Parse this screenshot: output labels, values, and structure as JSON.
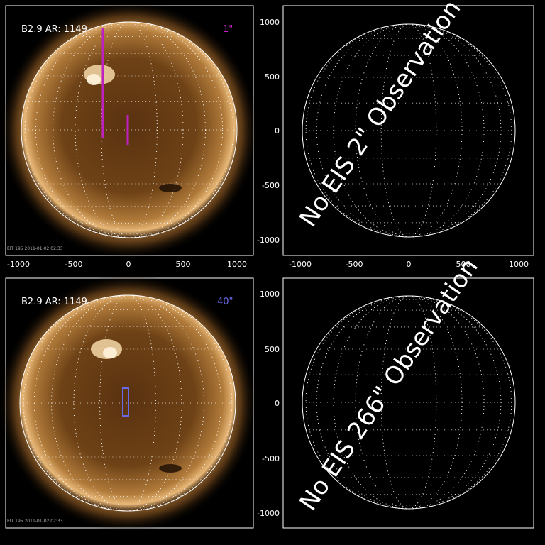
{
  "panels": {
    "top_left": {
      "header_left": "B2.9  AR: 1149",
      "header_right": "1\"",
      "header_right_color": "#c020c0",
      "footer": "EIT 195 2011-01-02 02:33",
      "fov_color": "#c020c0"
    },
    "top_right": {
      "overlay_text": "No EIS 2\" Observation"
    },
    "bottom_left": {
      "header_left": "B2.9  AR: 1149",
      "header_right": "40\"",
      "header_right_color": "#6a6ae8",
      "footer": "EIT 195 2011-01-02 02:33",
      "fov_color": "#6a6ae8"
    },
    "bottom_right": {
      "overlay_text": "No EIS 266\" Observation"
    }
  },
  "axes": {
    "x_ticks": [
      "-1000",
      "-500",
      "0",
      "500",
      "1000"
    ],
    "y_ticks": [
      "1000",
      "500",
      "0",
      "-500",
      "-1000"
    ]
  },
  "colors": {
    "background": "#000000",
    "axis": "#ffffff",
    "sun_core": "#7a4a18",
    "sun_limb": "#f0c078"
  }
}
